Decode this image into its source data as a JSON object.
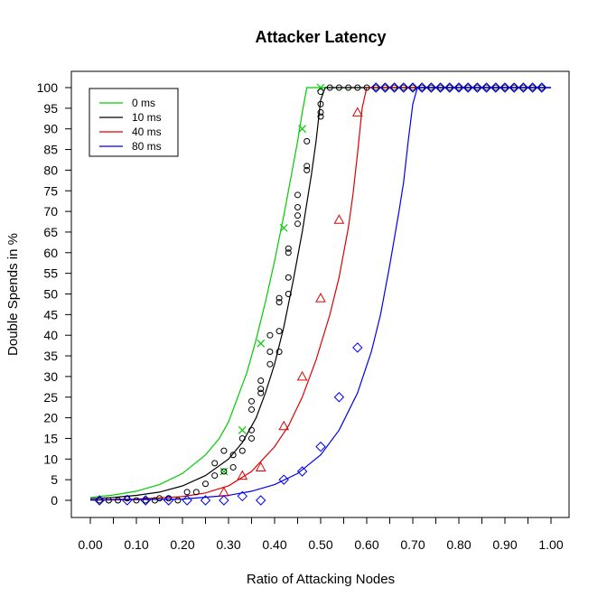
{
  "chart_data": {
    "type": "scatter",
    "title": "Attacker Latency",
    "xlabel": "Ratio of Attacking Nodes",
    "ylabel": "Double Spends in %",
    "xlim": [
      0,
      1
    ],
    "ylim": [
      0,
      100
    ],
    "x_ticks": [
      "0.00",
      "0.10",
      "0.20",
      "0.30",
      "0.40",
      "0.50",
      "0.60",
      "0.70",
      "0.80",
      "0.90",
      "1.00"
    ],
    "x_tick_values": [
      0,
      0.1,
      0.2,
      0.3,
      0.4,
      0.5,
      0.6,
      0.7,
      0.8,
      0.9,
      1.0
    ],
    "x_minor_ticks": [
      0.05,
      0.15,
      0.25,
      0.35,
      0.45,
      0.55,
      0.65,
      0.75,
      0.85,
      0.95
    ],
    "y_ticks": [
      0,
      5,
      10,
      15,
      20,
      25,
      30,
      35,
      40,
      45,
      50,
      55,
      60,
      65,
      70,
      75,
      80,
      85,
      90,
      95,
      100
    ],
    "grid": false,
    "legend_position": "top-left",
    "series": [
      {
        "name": "0 ms",
        "color": "#00cc00",
        "marker": "x",
        "points": [
          [
            0.29,
            7
          ],
          [
            0.33,
            17
          ],
          [
            0.37,
            38
          ],
          [
            0.42,
            66
          ],
          [
            0.46,
            90
          ],
          [
            0.5,
            100
          ]
        ],
        "curve": [
          [
            0,
            0.7
          ],
          [
            0.05,
            1.3
          ],
          [
            0.1,
            2.2
          ],
          [
            0.15,
            3.8
          ],
          [
            0.2,
            6.5
          ],
          [
            0.25,
            11
          ],
          [
            0.28,
            15
          ],
          [
            0.3,
            19
          ],
          [
            0.32,
            25
          ],
          [
            0.34,
            31
          ],
          [
            0.36,
            39
          ],
          [
            0.38,
            48
          ],
          [
            0.4,
            58
          ],
          [
            0.42,
            69
          ],
          [
            0.44,
            81
          ],
          [
            0.45,
            87
          ],
          [
            0.46,
            94
          ],
          [
            0.47,
            100
          ],
          [
            1.0,
            100
          ]
        ]
      },
      {
        "name": "10 ms",
        "color": "#000000",
        "marker": "circle",
        "points": [
          [
            0.02,
            0
          ],
          [
            0.04,
            0
          ],
          [
            0.06,
            0
          ],
          [
            0.08,
            0.5
          ],
          [
            0.1,
            0
          ],
          [
            0.12,
            0
          ],
          [
            0.14,
            0
          ],
          [
            0.15,
            0.5
          ],
          [
            0.17,
            0.5
          ],
          [
            0.19,
            0
          ],
          [
            0.21,
            2
          ],
          [
            0.23,
            2
          ],
          [
            0.25,
            4
          ],
          [
            0.27,
            6
          ],
          [
            0.27,
            9
          ],
          [
            0.29,
            7
          ],
          [
            0.29,
            12
          ],
          [
            0.31,
            8
          ],
          [
            0.31,
            11
          ],
          [
            0.33,
            12
          ],
          [
            0.33,
            15
          ],
          [
            0.35,
            15
          ],
          [
            0.35,
            17
          ],
          [
            0.35,
            22
          ],
          [
            0.35,
            24
          ],
          [
            0.37,
            26
          ],
          [
            0.37,
            27
          ],
          [
            0.37,
            29
          ],
          [
            0.39,
            33
          ],
          [
            0.39,
            36
          ],
          [
            0.39,
            40
          ],
          [
            0.41,
            36
          ],
          [
            0.41,
            41
          ],
          [
            0.41,
            48
          ],
          [
            0.41,
            49
          ],
          [
            0.43,
            50
          ],
          [
            0.43,
            54
          ],
          [
            0.43,
            60
          ],
          [
            0.43,
            61
          ],
          [
            0.45,
            67
          ],
          [
            0.45,
            69
          ],
          [
            0.45,
            71
          ],
          [
            0.45,
            74
          ],
          [
            0.47,
            80
          ],
          [
            0.47,
            81
          ],
          [
            0.47,
            87
          ],
          [
            0.5,
            93
          ],
          [
            0.5,
            94
          ],
          [
            0.5,
            96
          ],
          [
            0.5,
            99
          ],
          [
            0.52,
            100
          ],
          [
            0.54,
            100
          ],
          [
            0.56,
            100
          ],
          [
            0.58,
            100
          ],
          [
            0.6,
            100
          ],
          [
            0.62,
            100
          ],
          [
            0.64,
            100
          ],
          [
            0.66,
            100
          ],
          [
            0.68,
            100
          ],
          [
            0.7,
            100
          ],
          [
            0.72,
            100
          ],
          [
            0.74,
            100
          ],
          [
            0.76,
            100
          ],
          [
            0.78,
            100
          ],
          [
            0.8,
            100
          ],
          [
            0.82,
            100
          ],
          [
            0.84,
            100
          ],
          [
            0.86,
            100
          ],
          [
            0.88,
            100
          ],
          [
            0.9,
            100
          ],
          [
            0.92,
            100
          ],
          [
            0.94,
            100
          ],
          [
            0.96,
            100
          ],
          [
            0.98,
            100
          ]
        ],
        "curve": [
          [
            0,
            0.4
          ],
          [
            0.05,
            0.7
          ],
          [
            0.1,
            1.2
          ],
          [
            0.15,
            2
          ],
          [
            0.2,
            3.5
          ],
          [
            0.25,
            6
          ],
          [
            0.3,
            10
          ],
          [
            0.33,
            14
          ],
          [
            0.36,
            20
          ],
          [
            0.38,
            26
          ],
          [
            0.4,
            33
          ],
          [
            0.42,
            42
          ],
          [
            0.44,
            53
          ],
          [
            0.46,
            65
          ],
          [
            0.48,
            79
          ],
          [
            0.49,
            87
          ],
          [
            0.5,
            97
          ],
          [
            0.51,
            100
          ],
          [
            1.0,
            100
          ]
        ]
      },
      {
        "name": "40 ms",
        "color": "#dd0000",
        "marker": "triangle",
        "points": [
          [
            0.29,
            2
          ],
          [
            0.33,
            6
          ],
          [
            0.37,
            8
          ],
          [
            0.42,
            18
          ],
          [
            0.46,
            30
          ],
          [
            0.5,
            49
          ],
          [
            0.54,
            68
          ],
          [
            0.58,
            94
          ]
        ],
        "curve": [
          [
            0,
            0.1
          ],
          [
            0.1,
            0.3
          ],
          [
            0.2,
            0.9
          ],
          [
            0.25,
            1.8
          ],
          [
            0.3,
            3.5
          ],
          [
            0.35,
            7
          ],
          [
            0.4,
            13
          ],
          [
            0.43,
            18
          ],
          [
            0.46,
            25
          ],
          [
            0.49,
            34
          ],
          [
            0.52,
            45
          ],
          [
            0.54,
            54
          ],
          [
            0.56,
            66
          ],
          [
            0.57,
            74
          ],
          [
            0.58,
            84
          ],
          [
            0.59,
            95
          ],
          [
            0.6,
            100
          ],
          [
            1.0,
            100
          ]
        ]
      },
      {
        "name": "80 ms",
        "color": "#0000ee",
        "marker": "diamond",
        "points": [
          [
            0.02,
            0
          ],
          [
            0.08,
            0
          ],
          [
            0.12,
            0
          ],
          [
            0.17,
            0
          ],
          [
            0.21,
            0
          ],
          [
            0.25,
            0
          ],
          [
            0.29,
            0
          ],
          [
            0.33,
            1
          ],
          [
            0.37,
            0
          ],
          [
            0.42,
            5
          ],
          [
            0.46,
            7
          ],
          [
            0.5,
            13
          ],
          [
            0.54,
            25
          ],
          [
            0.58,
            37
          ],
          [
            0.62,
            100
          ],
          [
            0.64,
            100
          ],
          [
            0.66,
            100
          ],
          [
            0.68,
            100
          ],
          [
            0.7,
            100
          ],
          [
            0.72,
            100
          ],
          [
            0.74,
            100
          ],
          [
            0.76,
            100
          ],
          [
            0.78,
            100
          ],
          [
            0.8,
            100
          ],
          [
            0.82,
            100
          ],
          [
            0.84,
            100
          ],
          [
            0.86,
            100
          ],
          [
            0.88,
            100
          ],
          [
            0.9,
            100
          ],
          [
            0.92,
            100
          ],
          [
            0.94,
            100
          ],
          [
            0.96,
            100
          ],
          [
            0.98,
            100
          ]
        ],
        "curve": [
          [
            0,
            0.05
          ],
          [
            0.2,
            0.3
          ],
          [
            0.3,
            1.2
          ],
          [
            0.35,
            2.2
          ],
          [
            0.4,
            3.8
          ],
          [
            0.45,
            6.5
          ],
          [
            0.5,
            11
          ],
          [
            0.54,
            17
          ],
          [
            0.58,
            26
          ],
          [
            0.61,
            36
          ],
          [
            0.63,
            45
          ],
          [
            0.65,
            57
          ],
          [
            0.67,
            70
          ],
          [
            0.68,
            77
          ],
          [
            0.69,
            87
          ],
          [
            0.7,
            96
          ],
          [
            0.71,
            100
          ],
          [
            1.0,
            100
          ]
        ]
      }
    ]
  }
}
